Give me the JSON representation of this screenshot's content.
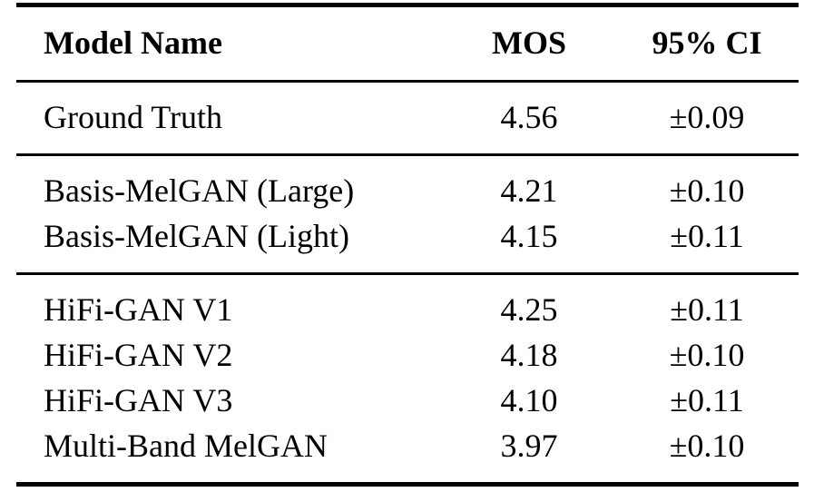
{
  "table": {
    "columns": {
      "model": "Model Name",
      "mos": "MOS",
      "ci": "95% CI"
    },
    "groups": [
      {
        "rows": [
          {
            "model": "Ground Truth",
            "mos": "4.56",
            "ci": "±0.09"
          }
        ]
      },
      {
        "rows": [
          {
            "model": "Basis-MelGAN (Large)",
            "mos": "4.21",
            "ci": "±0.10"
          },
          {
            "model": "Basis-MelGAN (Light)",
            "mos": "4.15",
            "ci": "±0.11"
          }
        ]
      },
      {
        "rows": [
          {
            "model": "HiFi-GAN V1",
            "mos": "4.25",
            "ci": "±0.11"
          },
          {
            "model": "HiFi-GAN V2",
            "mos": "4.18",
            "ci": "±0.10"
          },
          {
            "model": "HiFi-GAN V3",
            "mos": "4.10",
            "ci": "±0.11"
          },
          {
            "model": "Multi-Band MelGAN",
            "mos": "3.97",
            "ci": "±0.10"
          }
        ]
      }
    ]
  },
  "colors": {
    "text": "#000000",
    "rule": "#000000",
    "background": "#ffffff"
  }
}
